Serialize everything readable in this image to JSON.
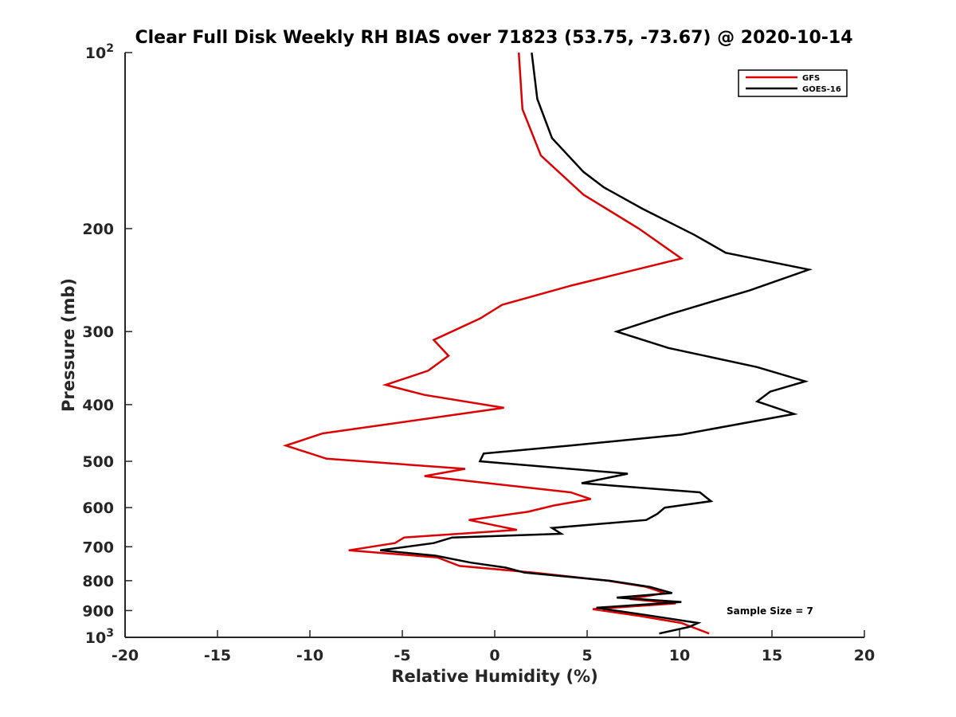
{
  "chart_data": {
    "type": "line",
    "title": "Clear Full Disk Weekly RH BIAS over 71823 (53.75, -73.67) @ 2020-10-14",
    "xlabel": "Relative Humidity (%)",
    "ylabel": "Pressure (mb)",
    "xlim": [
      -20,
      20
    ],
    "ylim": [
      100,
      1000
    ],
    "yscale": "log",
    "y_reversed": true,
    "x_ticks": [
      -20,
      -15,
      -10,
      -5,
      0,
      5,
      10,
      15,
      20
    ],
    "x_tick_labels": [
      "-20",
      "-15",
      "-10",
      "-5",
      "0",
      "5",
      "10",
      "15",
      "20"
    ],
    "y_ticks_plain": [
      200,
      300,
      400,
      500,
      600,
      700,
      800,
      900
    ],
    "y_ticks_plain_labels": [
      "200",
      "300",
      "400",
      "500",
      "600",
      "700",
      "800",
      "900"
    ],
    "y_tick_power_top": {
      "value": 100,
      "base": "10",
      "exp": "2"
    },
    "y_tick_power_bottom": {
      "value": 1000,
      "base": "10",
      "exp": "3"
    },
    "grid": false,
    "legend_position": "top-right",
    "annotation": "Sample Size = 7",
    "series": [
      {
        "name": "GFS",
        "color": "#dd0000",
        "points": [
          [
            1.3,
            100
          ],
          [
            1.5,
            125
          ],
          [
            2.5,
            150
          ],
          [
            4.8,
            175
          ],
          [
            7.8,
            200
          ],
          [
            10.1,
            225
          ],
          [
            4.2,
            250
          ],
          [
            0.4,
            270
          ],
          [
            -0.8,
            285
          ],
          [
            -3.3,
            310
          ],
          [
            -2.5,
            330
          ],
          [
            -3.6,
            350
          ],
          [
            -5.9,
            370
          ],
          [
            -3.8,
            385
          ],
          [
            0.5,
            405
          ],
          [
            -9.3,
            448
          ],
          [
            -11.3,
            470
          ],
          [
            -9.1,
            495
          ],
          [
            -1.6,
            515
          ],
          [
            -3.8,
            530
          ],
          [
            4.1,
            565
          ],
          [
            5.2,
            580
          ],
          [
            3.2,
            595
          ],
          [
            1.8,
            610
          ],
          [
            -1.4,
            630
          ],
          [
            1.2,
            655
          ],
          [
            -4.9,
            675
          ],
          [
            -5.4,
            690
          ],
          [
            -7.9,
            710
          ],
          [
            -3.1,
            730
          ],
          [
            -1.9,
            755
          ],
          [
            2.1,
            775
          ],
          [
            6.1,
            800
          ],
          [
            8.2,
            820
          ],
          [
            9.2,
            840
          ],
          [
            7.3,
            860
          ],
          [
            9.8,
            875
          ],
          [
            5.3,
            895
          ],
          [
            7.9,
            920
          ],
          [
            10.1,
            945
          ],
          [
            11.6,
            985
          ]
        ]
      },
      {
        "name": "GOES-16",
        "color": "#000000",
        "points": [
          [
            2.0,
            100
          ],
          [
            2.3,
            120
          ],
          [
            3.1,
            140
          ],
          [
            4.8,
            160
          ],
          [
            5.9,
            170
          ],
          [
            8.0,
            185
          ],
          [
            10.8,
            205
          ],
          [
            12.5,
            220
          ],
          [
            17.0,
            235
          ],
          [
            13.8,
            255
          ],
          [
            9.5,
            280
          ],
          [
            6.6,
            300
          ],
          [
            9.4,
            320
          ],
          [
            14.2,
            345
          ],
          [
            16.8,
            365
          ],
          [
            14.9,
            380
          ],
          [
            14.2,
            395
          ],
          [
            16.2,
            415
          ],
          [
            10.1,
            450
          ],
          [
            4.1,
            470
          ],
          [
            -0.6,
            485
          ],
          [
            -0.8,
            500
          ],
          [
            7.2,
            525
          ],
          [
            4.7,
            545
          ],
          [
            11.1,
            565
          ],
          [
            11.7,
            585
          ],
          [
            9.2,
            600
          ],
          [
            8.8,
            615
          ],
          [
            8.2,
            630
          ],
          [
            3.1,
            650
          ],
          [
            3.6,
            665
          ],
          [
            -2.3,
            675
          ],
          [
            -3.3,
            690
          ],
          [
            -6.2,
            710
          ],
          [
            -3.2,
            725
          ],
          [
            -1.3,
            745
          ],
          [
            0.6,
            760
          ],
          [
            1.6,
            775
          ],
          [
            6.2,
            800
          ],
          [
            8.4,
            820
          ],
          [
            9.6,
            840
          ],
          [
            6.6,
            855
          ],
          [
            10.1,
            870
          ],
          [
            5.5,
            890
          ],
          [
            8.1,
            915
          ],
          [
            11.0,
            945
          ],
          [
            10.5,
            960
          ],
          [
            8.9,
            985
          ]
        ]
      }
    ]
  }
}
